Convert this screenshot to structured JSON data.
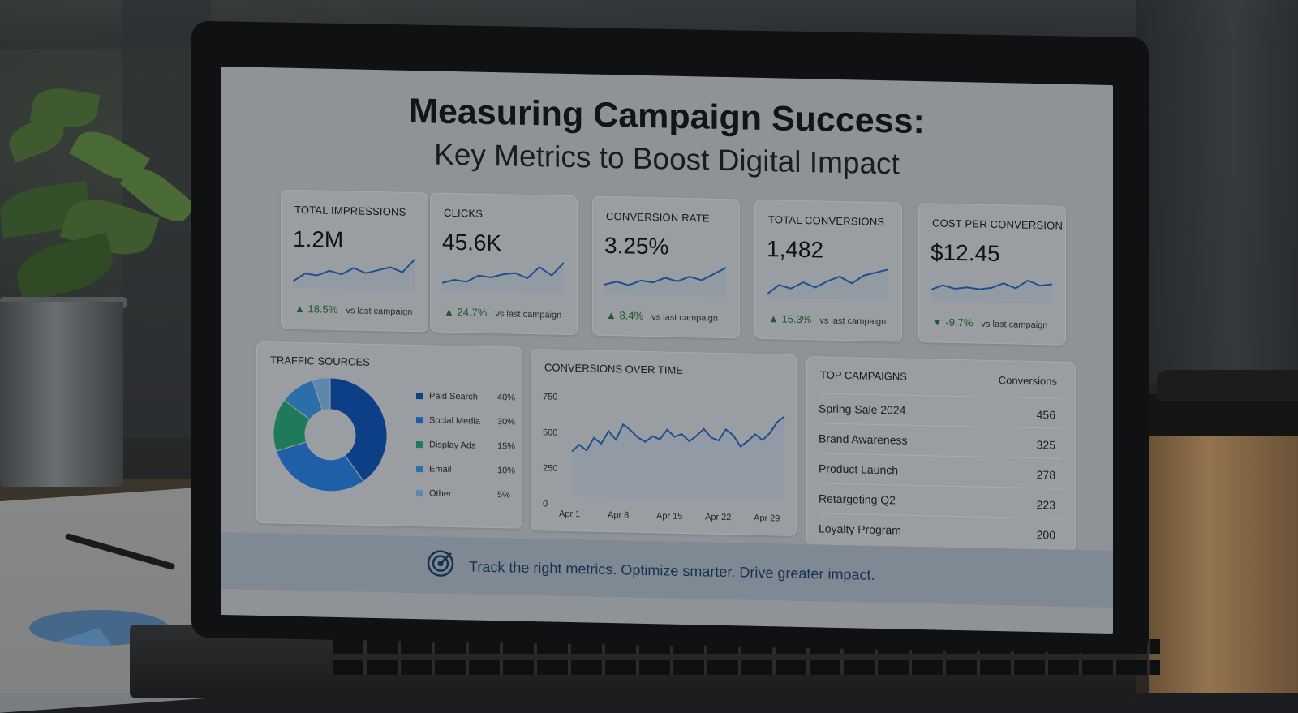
{
  "headline": {
    "line1": "Measuring Campaign Success:",
    "line2": "Key Metrics to Boost Digital Impact"
  },
  "kpis": [
    {
      "label": "TOTAL IMPRESSIONS",
      "value": "1.2M",
      "delta": "▲ 18.5%",
      "compare": "vs last campaign",
      "trend": "up"
    },
    {
      "label": "CLICKS",
      "value": "45.6K",
      "delta": "▲ 24.7%",
      "compare": "vs last campaign",
      "trend": "up"
    },
    {
      "label": "CONVERSION RATE",
      "value": "3.25%",
      "delta": "▲ 8.4%",
      "compare": "vs last campaign",
      "trend": "up"
    },
    {
      "label": "TOTAL CONVERSIONS",
      "value": "1,482",
      "delta": "▲ 15.3%",
      "compare": "vs last campaign",
      "trend": "up"
    },
    {
      "label": "COST PER CONVERSION",
      "value": "$12.45",
      "delta": "▼ -9.7%",
      "compare": "vs last campaign",
      "trend": "down"
    }
  ],
  "traffic_sources": {
    "title": "TRAFFIC SOURCES",
    "items": [
      {
        "label": "Paid Search",
        "pct": "40%",
        "value": 40,
        "color": "#0d3f86"
      },
      {
        "label": "Social Media",
        "pct": "30%",
        "value": 30,
        "color": "#1f5fa8"
      },
      {
        "label": "Display Ads",
        "pct": "15%",
        "value": 15,
        "color": "#1f7a5a"
      },
      {
        "label": "Email",
        "pct": "10%",
        "value": 10,
        "color": "#2b6ea8"
      },
      {
        "label": "Other",
        "pct": "5%",
        "value": 5,
        "color": "#5e87ad"
      }
    ]
  },
  "conversions_over_time": {
    "title": "CONVERSIONS OVER TIME",
    "y_ticks": [
      "750",
      "500",
      "250",
      "0"
    ],
    "x_ticks": [
      "Apr 1",
      "Apr 8",
      "Apr 15",
      "Apr 22",
      "Apr 29"
    ],
    "ylim": [
      0,
      750
    ],
    "values": [
      320,
      370,
      330,
      420,
      380,
      470,
      410,
      520,
      480,
      430,
      400,
      440,
      420,
      490,
      440,
      460,
      410,
      450,
      500,
      440,
      420,
      500,
      460,
      380,
      420,
      470,
      430,
      480,
      560,
      600
    ]
  },
  "top_campaigns": {
    "title": "TOP CAMPAIGNS",
    "column": "Conversions",
    "rows": [
      {
        "name": "Spring Sale 2024",
        "value": "456"
      },
      {
        "name": "Brand Awareness",
        "value": "325"
      },
      {
        "name": "Product Launch",
        "value": "278"
      },
      {
        "name": "Retargeting Q2",
        "value": "223"
      },
      {
        "name": "Loyalty Program",
        "value": "200"
      }
    ]
  },
  "banner": {
    "icon": "target-icon",
    "text": "Track the right metrics. Optimize smarter. Drive greater impact."
  }
}
